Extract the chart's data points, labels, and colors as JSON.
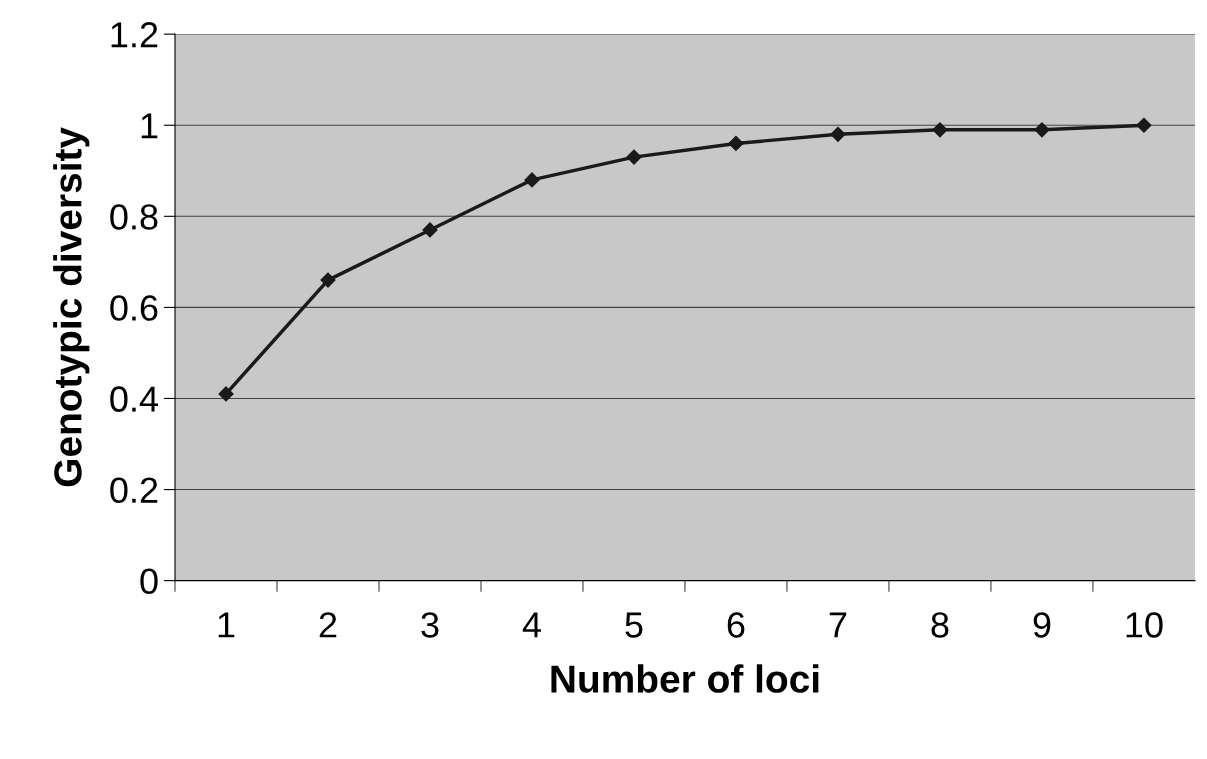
{
  "chart_data": {
    "type": "line",
    "xlabel": "Number of loci",
    "ylabel": "Genotypic diversity",
    "categories": [
      "1",
      "2",
      "3",
      "4",
      "5",
      "6",
      "7",
      "8",
      "9",
      "10"
    ],
    "series": [
      {
        "color": "#1a1a1a",
        "values": [
          0.41,
          0.66,
          0.77,
          0.88,
          0.93,
          0.96,
          0.98,
          0.99,
          0.99,
          1.0
        ]
      }
    ],
    "ylim": [
      0,
      1.2
    ],
    "yticks": [
      0,
      0.2,
      0.4,
      0.6,
      0.8,
      1,
      1.2
    ],
    "grid": "y",
    "marker": "diamond",
    "line_style": "solid",
    "legend": false
  }
}
